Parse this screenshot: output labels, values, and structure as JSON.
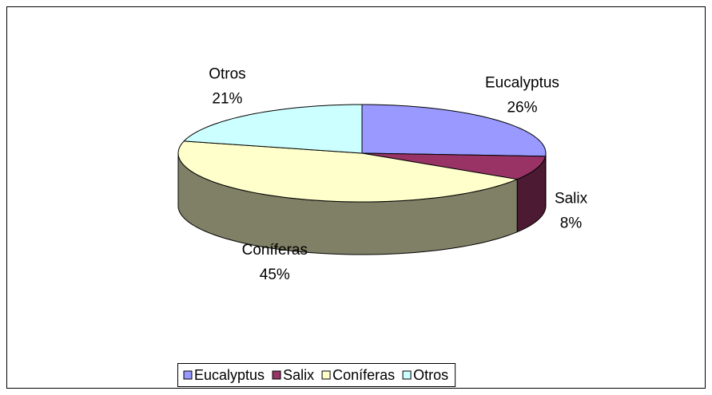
{
  "chart_data": {
    "type": "pie3d",
    "categories": [
      "Eucalyptus",
      "Salix",
      "Coníferas",
      "Otros"
    ],
    "values": [
      26,
      8,
      45,
      21
    ],
    "value_labels": [
      "26%",
      "8%",
      "45%",
      "21%"
    ],
    "colors": [
      "#9999ff",
      "#993366",
      "#ffffcc",
      "#ccffff"
    ],
    "legend": "bottom"
  }
}
